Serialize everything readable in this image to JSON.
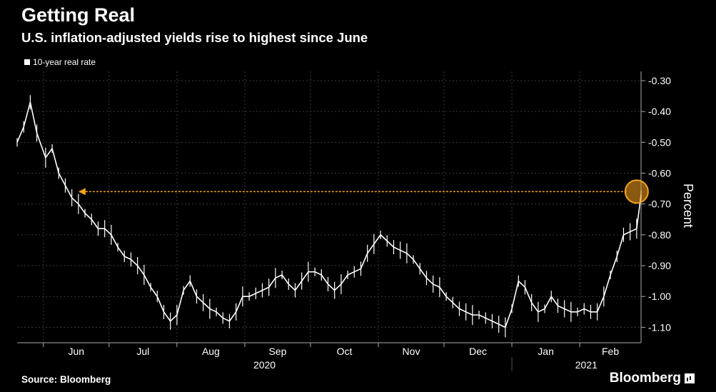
{
  "header": {
    "title": "Getting Real",
    "subtitle": "U.S. inflation-adjusted yields rise to highest since June"
  },
  "footer": {
    "source": "Source: Bloomberg",
    "brand": "Bloomberg"
  },
  "chart_data": {
    "type": "line",
    "title": "Getting Real",
    "subtitle": "U.S. inflation-adjusted yields rise to highest since June",
    "ylabel": "Percent",
    "ylim": [
      -1.15,
      -0.27
    ],
    "yticks": [
      -0.3,
      -0.4,
      -0.5,
      -0.6,
      -0.7,
      -0.8,
      -0.9,
      -1.0,
      -1.1
    ],
    "ytick_labels": [
      "-0.30",
      "-0.40",
      "-0.50",
      "-0.60",
      "-0.70",
      "-0.80",
      "-0.90",
      "-1.00",
      "-1.10"
    ],
    "y_axis_side": "right",
    "x_months": [
      "Jun",
      "Jul",
      "Aug",
      "Sep",
      "Oct",
      "Nov",
      "Dec",
      "Jan",
      "Feb"
    ],
    "x_years": [
      "2020",
      "2021"
    ],
    "grid": true,
    "legend": "top-left",
    "series": [
      {
        "name": "10-year real rate",
        "color": "#ffffff",
        "x": [
          "2020-05-20",
          "2020-05-23",
          "2020-05-26",
          "2020-05-29",
          "2020-06-02",
          "2020-06-05",
          "2020-06-08",
          "2020-06-11",
          "2020-06-14",
          "2020-06-17",
          "2020-06-20",
          "2020-06-23",
          "2020-06-26",
          "2020-06-29",
          "2020-07-02",
          "2020-07-05",
          "2020-07-08",
          "2020-07-11",
          "2020-07-14",
          "2020-07-17",
          "2020-07-20",
          "2020-07-23",
          "2020-07-26",
          "2020-07-29",
          "2020-08-01",
          "2020-08-04",
          "2020-08-07",
          "2020-08-10",
          "2020-08-13",
          "2020-08-16",
          "2020-08-19",
          "2020-08-22",
          "2020-08-25",
          "2020-08-28",
          "2020-08-31",
          "2020-09-03",
          "2020-09-06",
          "2020-09-09",
          "2020-09-12",
          "2020-09-15",
          "2020-09-18",
          "2020-09-21",
          "2020-09-24",
          "2020-09-27",
          "2020-09-30",
          "2020-10-03",
          "2020-10-06",
          "2020-10-09",
          "2020-10-12",
          "2020-10-15",
          "2020-10-18",
          "2020-10-21",
          "2020-10-24",
          "2020-10-27",
          "2020-10-30",
          "2020-11-02",
          "2020-11-05",
          "2020-11-08",
          "2020-11-11",
          "2020-11-14",
          "2020-11-17",
          "2020-11-20",
          "2020-11-23",
          "2020-11-26",
          "2020-11-29",
          "2020-12-02",
          "2020-12-05",
          "2020-12-08",
          "2020-12-11",
          "2020-12-14",
          "2020-12-17",
          "2020-12-20",
          "2020-12-23",
          "2020-12-26",
          "2020-12-29",
          "2021-01-01",
          "2021-01-04",
          "2021-01-07",
          "2021-01-10",
          "2021-01-13",
          "2021-01-16",
          "2021-01-19",
          "2021-01-22",
          "2021-01-25",
          "2021-01-28",
          "2021-01-31",
          "2021-02-03",
          "2021-02-06",
          "2021-02-09",
          "2021-02-12",
          "2021-02-15",
          "2021-02-18",
          "2021-02-21",
          "2021-02-24",
          "2021-02-27",
          "2021-03-01"
        ],
        "y": [
          -0.5,
          -0.45,
          -0.37,
          -0.47,
          -0.55,
          -0.52,
          -0.6,
          -0.64,
          -0.68,
          -0.7,
          -0.73,
          -0.75,
          -0.78,
          -0.78,
          -0.8,
          -0.84,
          -0.87,
          -0.88,
          -0.9,
          -0.93,
          -0.97,
          -1.0,
          -1.05,
          -1.08,
          -1.06,
          -0.98,
          -0.95,
          -1.0,
          -1.02,
          -1.04,
          -1.05,
          -1.07,
          -1.08,
          -1.05,
          -1.0,
          -1.0,
          -0.99,
          -0.98,
          -0.97,
          -0.94,
          -0.93,
          -0.96,
          -0.98,
          -0.95,
          -0.92,
          -0.92,
          -0.93,
          -0.96,
          -0.98,
          -0.96,
          -0.93,
          -0.92,
          -0.91,
          -0.86,
          -0.83,
          -0.8,
          -0.82,
          -0.84,
          -0.85,
          -0.86,
          -0.88,
          -0.91,
          -0.94,
          -0.96,
          -0.97,
          -1.0,
          -1.02,
          -1.04,
          -1.05,
          -1.06,
          -1.06,
          -1.07,
          -1.08,
          -1.09,
          -1.1,
          -1.04,
          -0.95,
          -0.97,
          -1.02,
          -1.05,
          -1.04,
          -1.0,
          -1.03,
          -1.04,
          -1.05,
          -1.05,
          -1.04,
          -1.05,
          -1.05,
          -1.0,
          -0.93,
          -0.87,
          -0.8,
          -0.79,
          -0.78,
          -0.67
        ]
      }
    ],
    "annotation": {
      "type": "arrow",
      "from_date": "2021-02-27",
      "to_date": "2020-06-17",
      "level": -0.66,
      "color": "#f7a21b"
    }
  }
}
